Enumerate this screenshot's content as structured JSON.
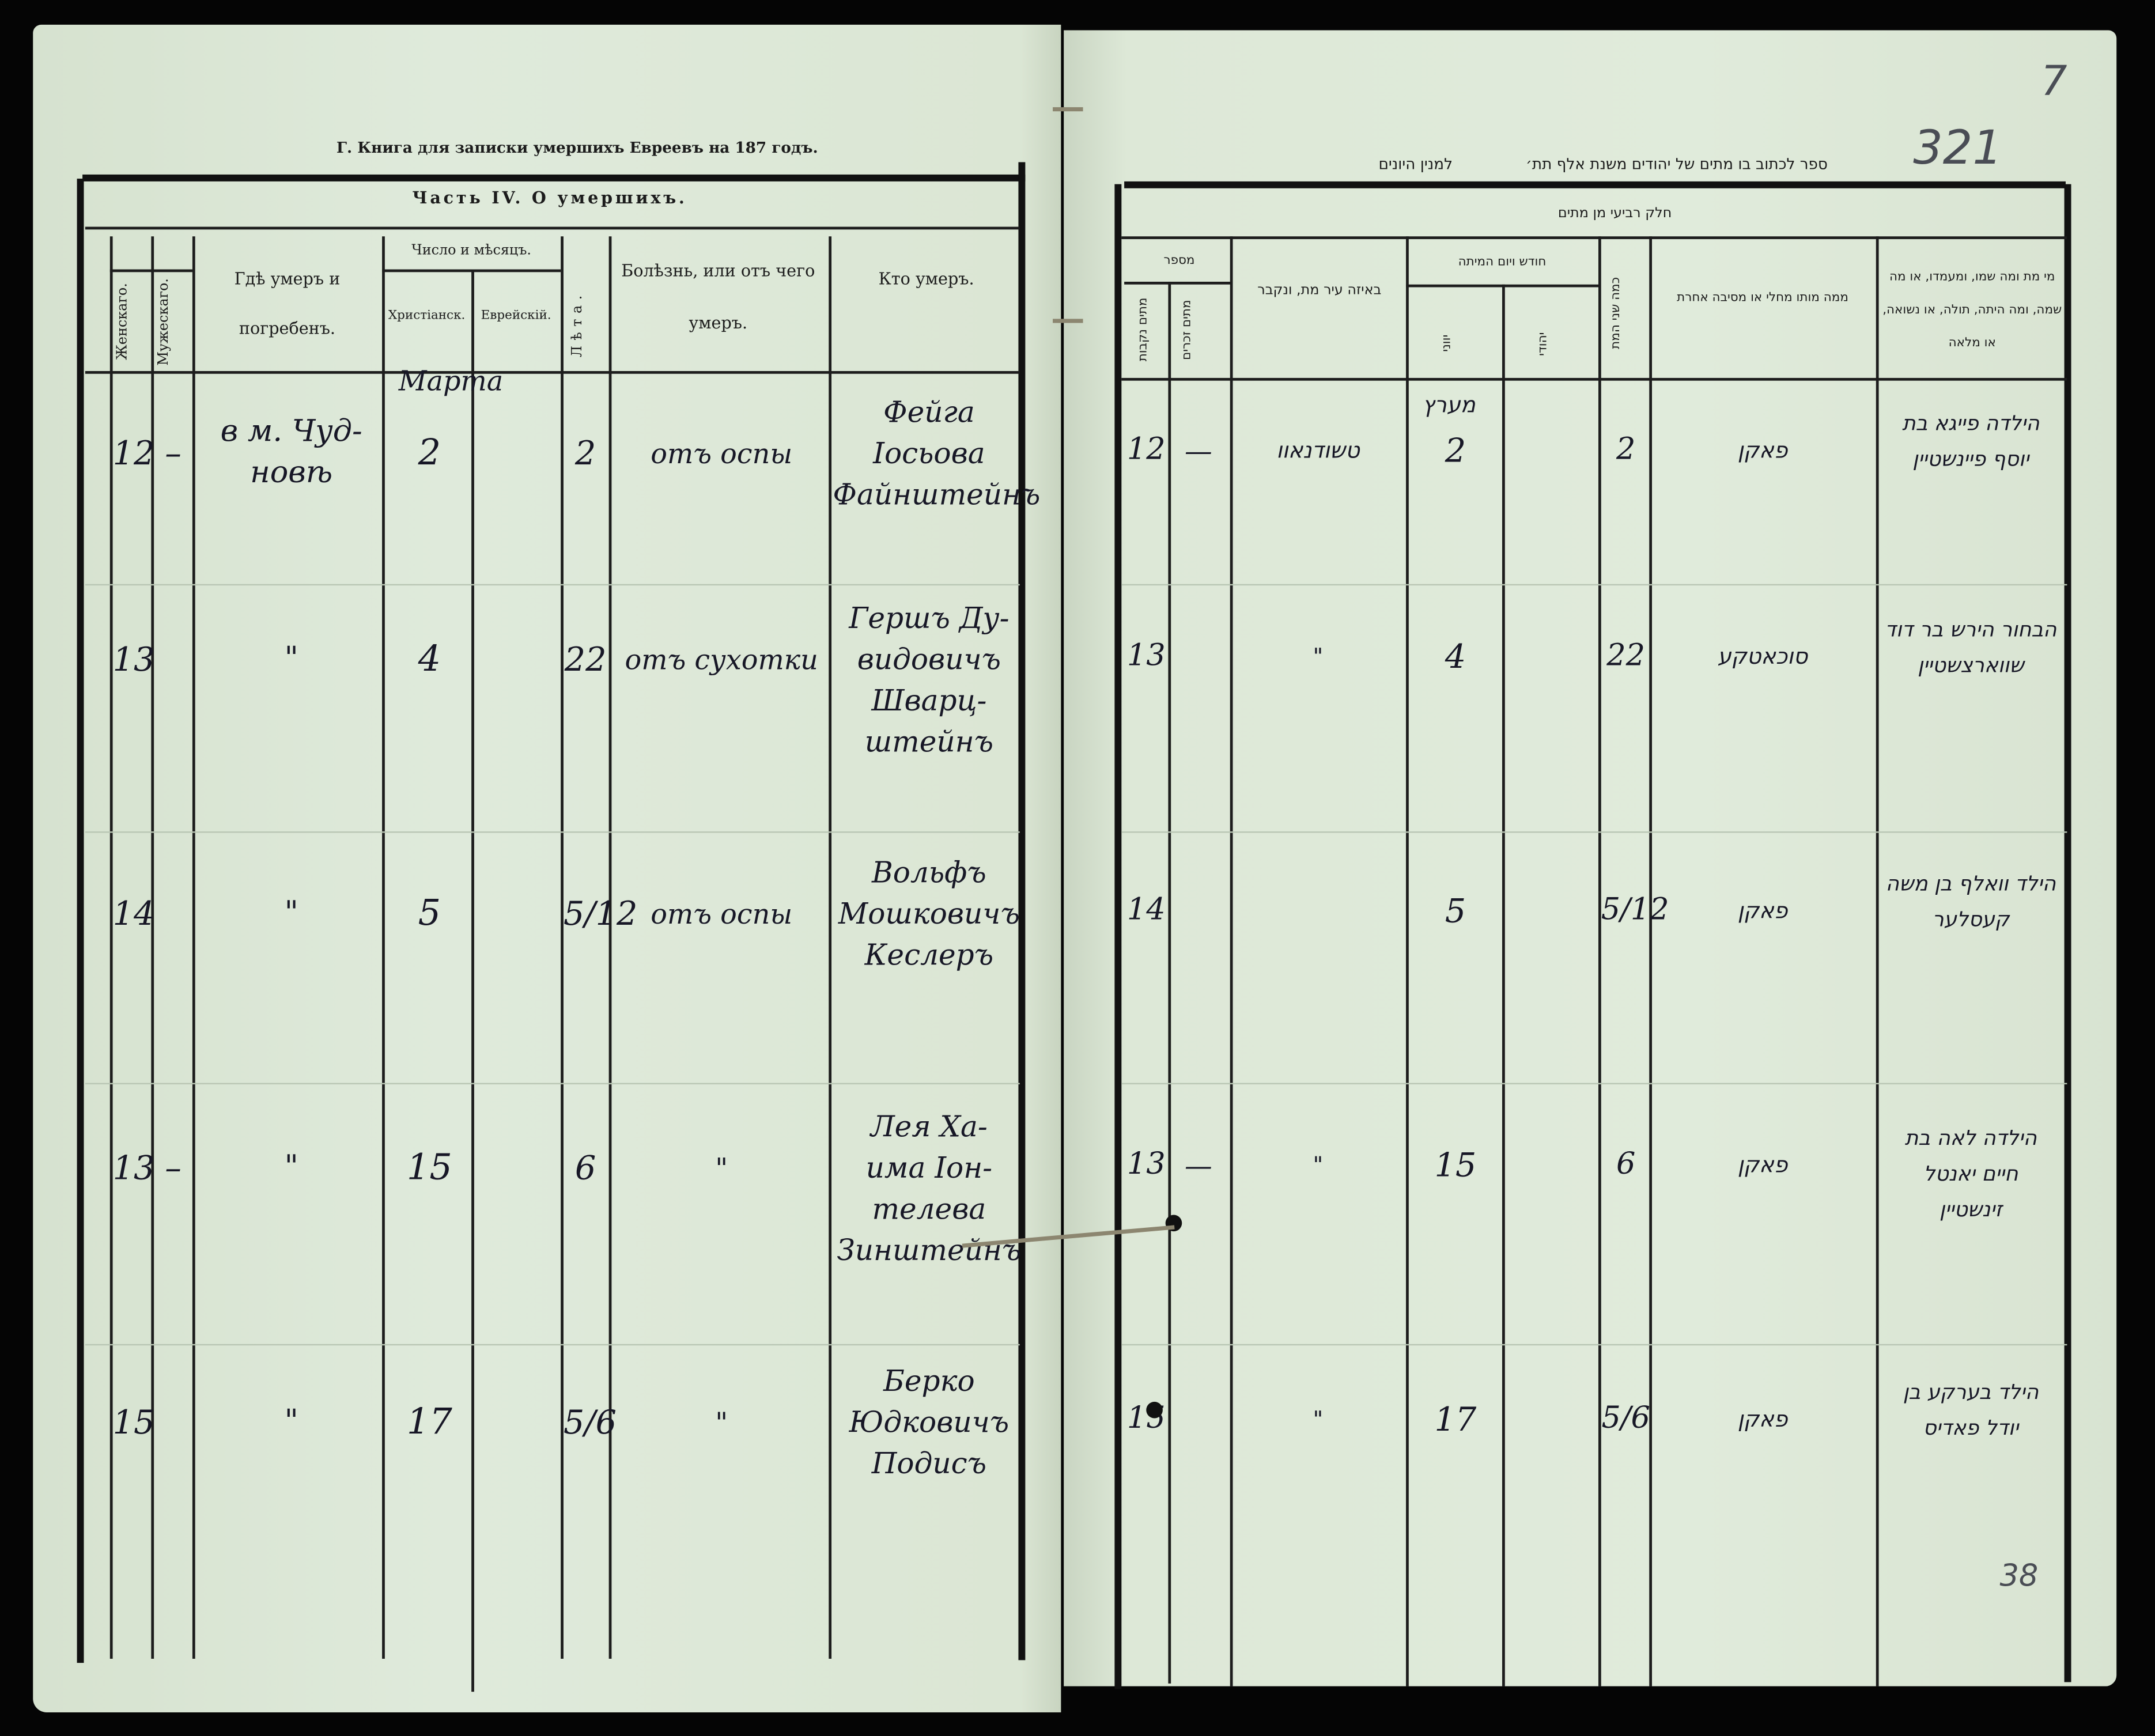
{
  "folio": {
    "pencil_number": "321",
    "corner_number": "7",
    "bottom_note": "38"
  },
  "left": {
    "book_title": "Г. Книга для записки умершихъ Евреевъ на 187   годъ.",
    "part_title": "Часть IV. О умершихъ.",
    "headers": {
      "female": "Женскаго.",
      "male": "Мужескаго.",
      "place": "Гдѣ умеръ и погребенъ.",
      "date_group": "Число и мѣсяцъ.",
      "christian": "Христіанск.",
      "jewish": "Еврейскій.",
      "age": "Лѣта.",
      "cause": "Болѣзнь, или отъ чего умеръ.",
      "who": "Кто умеръ."
    },
    "month_note": "Марта",
    "rows": [
      {
        "female": "12",
        "male": "–",
        "place": "в м. Чуд-\nновѣ",
        "christian": "2",
        "jewish": "",
        "age": "2",
        "cause": "отъ оспы",
        "who": "Фейга\nІосьова\nФайнштейнъ"
      },
      {
        "female": "13",
        "male": "",
        "place": "\"",
        "christian": "4",
        "jewish": "",
        "age": "22",
        "cause": "отъ сухотки",
        "who": "Гершъ Ду-\nвидовичъ\nШварц-\nштейнъ"
      },
      {
        "female": "14",
        "male": "",
        "place": "\"",
        "christian": "5",
        "jewish": "",
        "age": "5/12",
        "cause": "отъ оспы",
        "who": "Вольфъ\nМошковичъ\nКеслеръ"
      },
      {
        "female": "13",
        "male": "–",
        "place": "\"",
        "christian": "15",
        "jewish": "",
        "age": "6",
        "cause": "\"",
        "who": "Лея Ха-\nима Іон-\nтелева\nЗинштейнъ"
      },
      {
        "female": "15",
        "male": "",
        "place": "\"",
        "christian": "17",
        "jewish": "",
        "age": "5/6",
        "cause": "\"",
        "who": "Берко\nЮдковичъ\nПодисъ"
      }
    ]
  },
  "right": {
    "book_title": "ספר לכתוב בו מתים של יהודים משנת אלף תת׳",
    "book_title_suffix": "למנין היונים",
    "part_title": "חלק רביעי מן מתים",
    "headers": {
      "number_group": "מספר",
      "female": "מתים נקבות",
      "male": "מתים זכרים",
      "place": "באיזה עיר מת, ונקבר",
      "date_group": "חודש ויום המיתה",
      "greek": "יווני",
      "jewish": "יהודי",
      "age": "כמה שני המת",
      "cause": "ממה מותו מחלי או מסיבה אחרת",
      "who": "מי מת ומה שמו, ומעמדו, או מה שמה, ומה היתה, תולה, או נשואה, או מלאה"
    },
    "month_note": "מערץ",
    "rows": [
      {
        "female": "12",
        "male": "—",
        "place": "טשודנאוו",
        "greek": "2",
        "jewish": "",
        "age": "2",
        "cause": "פאקן",
        "who": "הילדה פייגא בת\nיוסף פיינשטיין"
      },
      {
        "female": "13",
        "male": "",
        "place": "\"",
        "greek": "4",
        "jewish": "",
        "age": "22",
        "cause": "סוכאטקע",
        "who": "הבחור הירש בר דוד\nשווארצשטיין"
      },
      {
        "female": "14",
        "male": "",
        "place": "",
        "greek": "5",
        "jewish": "",
        "age": "5/12",
        "cause": "פאקן",
        "who": "הילד וואלף בן משה\nקעסלער"
      },
      {
        "female": "13",
        "male": "—",
        "place": "\"",
        "greek": "15",
        "jewish": "",
        "age": "6",
        "cause": "פאקן",
        "who": "הילדה לאה בת\nחיים יאנטל\nזינשטיין"
      },
      {
        "female": "15",
        "male": "",
        "place": "\"",
        "greek": "17",
        "jewish": "",
        "age": "5/6",
        "cause": "פאקן",
        "who": "הילד בערקע בן\nיודל פאדיס"
      }
    ]
  },
  "colors": {
    "paper": "#dde8d6",
    "ink": "#171726",
    "rule": "#1d1d1d",
    "background": "#050505"
  }
}
